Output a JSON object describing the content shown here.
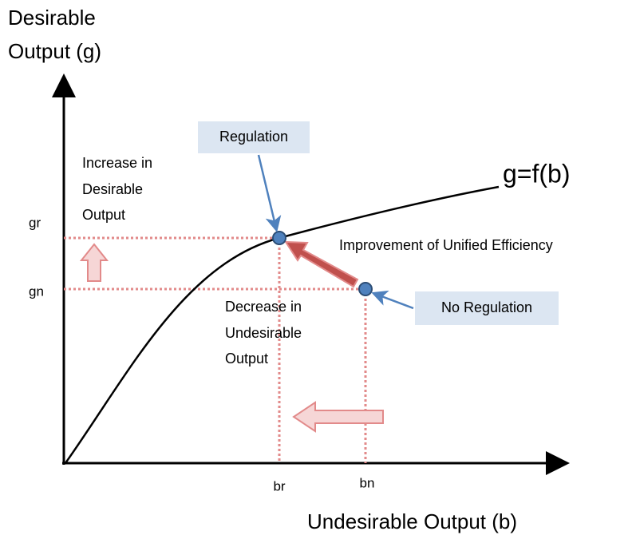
{
  "axes": {
    "y_title": [
      "Desirable",
      "Output (g)"
    ],
    "x_title": "Undesirable Output (b)"
  },
  "curve_label": "g=f(b)",
  "ticks": {
    "y": [
      "gr",
      "gn"
    ],
    "x": [
      "br",
      "bn"
    ]
  },
  "callouts": [
    "Regulation",
    "No Regulation"
  ],
  "annotations": {
    "increase": [
      "Increase in",
      "Desirable",
      "Output"
    ],
    "decrease": [
      "Decrease in",
      "Undesirable",
      "Output"
    ],
    "improvement": "Improvement of Unified Efficiency"
  }
}
